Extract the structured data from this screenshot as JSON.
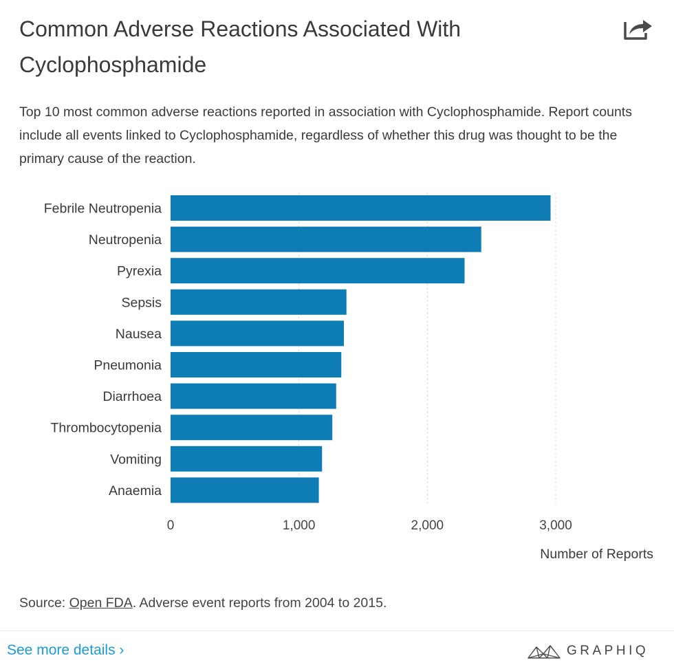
{
  "header": {
    "title": "Common Adverse Reactions Associated With Cyclophosphamide",
    "subtitle": "Top 10 most common adverse reactions reported in association with Cyclophosphamide. Report counts include all events linked to Cyclophosphamide, regardless of whether this drug was thought to be the primary cause of the reaction.",
    "share_icon": "share-icon"
  },
  "chart_data": {
    "type": "bar",
    "orientation": "horizontal",
    "categories": [
      "Febrile Neutropenia",
      "Neutropenia",
      "Pyrexia",
      "Sepsis",
      "Nausea",
      "Pneumonia",
      "Diarrhoea",
      "Thrombocytopenia",
      "Vomiting",
      "Anaemia"
    ],
    "values": [
      2960,
      2420,
      2290,
      1370,
      1350,
      1330,
      1290,
      1260,
      1180,
      1155
    ],
    "xlabel": "Number of Reports",
    "ylabel": "",
    "xlim": [
      0,
      3000
    ],
    "xticks": [
      0,
      1000,
      2000,
      3000
    ],
    "xtick_labels": [
      "0",
      "1,000",
      "2,000",
      "3,000"
    ],
    "grid": "vertical-dashed",
    "bar_color": "#0f7db5"
  },
  "footer": {
    "source_prefix": "Source: ",
    "source_link": "Open FDA",
    "source_suffix": ". Adverse event reports from 2004 to 2015.",
    "see_more": "See more details ›",
    "brand": "GRAPHIQ",
    "brand_icon": "graphiq-logo-icon"
  }
}
